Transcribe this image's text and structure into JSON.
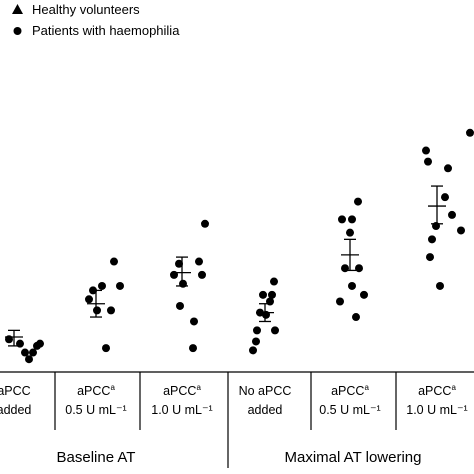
{
  "chart_data": {
    "type": "scatter",
    "title": "",
    "xlabel": "",
    "ylabel": "",
    "ylim": [
      0,
      100
    ],
    "legend": {
      "placement": "top-left",
      "entries": [
        {
          "marker": "triangle",
          "label": "Healthy volunteers"
        },
        {
          "marker": "circle",
          "label": "Patients with haemophilia"
        }
      ]
    },
    "groups": [
      {
        "label": "Baseline AT",
        "categories": [
          0,
          1,
          2
        ]
      },
      {
        "label": "Maximal AT lowering",
        "categories": [
          3,
          4,
          5
        ]
      }
    ],
    "categories": [
      {
        "lines": [
          "aPCC",
          "added"
        ],
        "sup": ""
      },
      {
        "lines": [
          "aPCC",
          "0.5 U mL⁻¹"
        ],
        "sup": "a"
      },
      {
        "lines": [
          "aPCC",
          "1.0 U mL⁻¹"
        ],
        "sup": "a"
      },
      {
        "lines": [
          "No aPCC",
          "added"
        ],
        "sup": ""
      },
      {
        "lines": [
          "aPCC",
          "0.5 U mL⁻¹"
        ],
        "sup": "a"
      },
      {
        "lines": [
          "aPCC",
          "1.0 U mL⁻¹"
        ],
        "sup": "a"
      }
    ],
    "series": [
      {
        "name": "Patients with haemophilia",
        "marker": "circle",
        "color": "#000000",
        "points": [
          [
            [
              -0.1,
              8
            ],
            [
              0.12,
              6
            ],
            [
              0.22,
              2
            ],
            [
              0.3,
              -1
            ],
            [
              0.38,
              2
            ],
            [
              0.46,
              5
            ],
            [
              0.52,
              6
            ]
          ],
          [
            [
              -0.14,
              26
            ],
            [
              -0.06,
              30
            ],
            [
              0.02,
              21
            ],
            [
              0.12,
              32
            ],
            [
              0.2,
              4
            ],
            [
              0.3,
              21
            ],
            [
              0.36,
              43
            ],
            [
              0.48,
              32
            ]
          ],
          [
            [
              -0.16,
              37
            ],
            [
              -0.06,
              42
            ],
            [
              -0.04,
              23
            ],
            [
              0.02,
              33
            ],
            [
              0.22,
              4
            ],
            [
              0.24,
              16
            ],
            [
              0.34,
              43
            ],
            [
              0.4,
              37
            ],
            [
              0.46,
              60
            ]
          ],
          [
            [
              -0.24,
              3
            ],
            [
              -0.18,
              7
            ],
            [
              -0.16,
              12
            ],
            [
              -0.1,
              20
            ],
            [
              -0.04,
              28
            ],
            [
              0.02,
              19
            ],
            [
              0.1,
              25
            ],
            [
              0.14,
              28
            ],
            [
              0.18,
              34
            ],
            [
              0.2,
              12
            ]
          ],
          [
            [
              -0.2,
              25
            ],
            [
              -0.16,
              62
            ],
            [
              -0.1,
              40
            ],
            [
              0.0,
              56
            ],
            [
              0.04,
              62
            ],
            [
              0.04,
              32
            ],
            [
              0.12,
              18
            ],
            [
              0.16,
              70
            ],
            [
              0.18,
              40
            ],
            [
              0.28,
              28
            ]
          ],
          [
            [
              -0.22,
              93
            ],
            [
              -0.18,
              88
            ],
            [
              -0.14,
              45
            ],
            [
              -0.1,
              53
            ],
            [
              -0.02,
              59
            ],
            [
              0.06,
              32
            ],
            [
              0.16,
              72
            ],
            [
              0.22,
              85
            ],
            [
              0.3,
              64
            ],
            [
              0.48,
              57
            ],
            [
              0.66,
              101
            ]
          ]
        ]
      }
    ],
    "summaries": [
      {
        "mean": 9,
        "low": 5,
        "high": 12
      },
      {
        "mean": 24,
        "low": 18,
        "high": 30
      },
      {
        "mean": 38,
        "low": 32,
        "high": 45
      },
      {
        "mean": 20,
        "low": 16,
        "high": 24
      },
      {
        "mean": 46,
        "low": 39,
        "high": 53
      },
      {
        "mean": 68,
        "low": 60,
        "high": 77
      }
    ]
  }
}
